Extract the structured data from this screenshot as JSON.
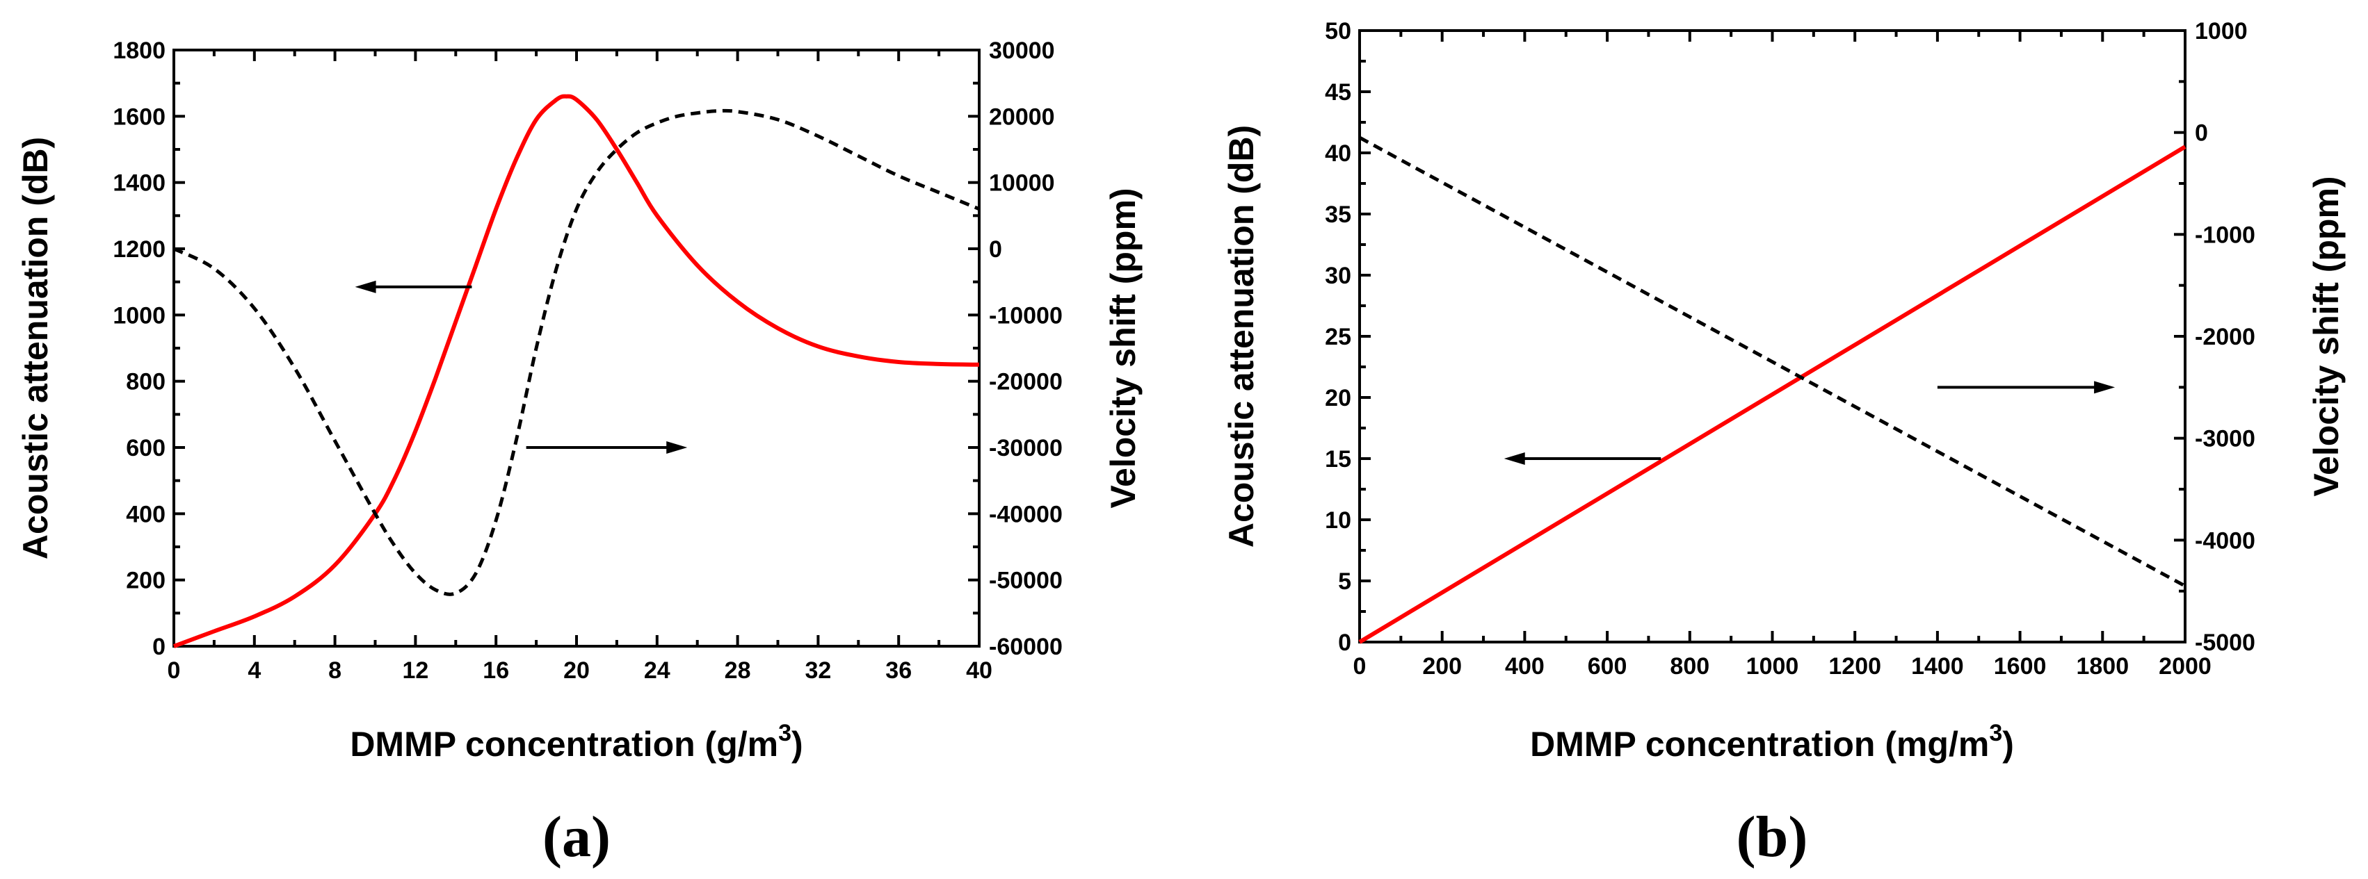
{
  "chart_data": [
    {
      "type": "line",
      "panel_label": "(a)",
      "xlabel": "DMMP concentration (g/m",
      "xlabel_sup": "3",
      "xlabel_end": ")",
      "ylabel_left": "Acoustic attenuation (dB)",
      "ylabel_right": "Velocity shift (ppm)",
      "xlim": [
        0,
        40
      ],
      "ylim_left": [
        0,
        1800
      ],
      "ylim_right": [
        -60000,
        30000
      ],
      "xticks": [
        "0",
        "4",
        "8",
        "12",
        "16",
        "20",
        "24",
        "28",
        "32",
        "36",
        "40"
      ],
      "yticks_left": [
        "0",
        "200",
        "400",
        "600",
        "800",
        "1000",
        "1200",
        "1400",
        "1600",
        "1800"
      ],
      "yticks_right": [
        "-60000",
        "-50000",
        "-40000",
        "-30000",
        "-20000",
        "-10000",
        "0",
        "10000",
        "20000",
        "30000"
      ],
      "series": [
        {
          "name": "Acoustic attenuation",
          "axis": "left",
          "color": "#ff0000",
          "style": "solid",
          "x": [
            0,
            2,
            4,
            6,
            8,
            10,
            11,
            12,
            13,
            14,
            15,
            16,
            17,
            18,
            19,
            19.5,
            20,
            21,
            22,
            23,
            24,
            26,
            28,
            30,
            32,
            34,
            36,
            38,
            40
          ],
          "y": [
            0,
            45,
            90,
            150,
            245,
            400,
            510,
            650,
            810,
            980,
            1150,
            1320,
            1470,
            1590,
            1650,
            1660,
            1650,
            1590,
            1500,
            1400,
            1300,
            1150,
            1040,
            960,
            905,
            875,
            858,
            852,
            850
          ]
        },
        {
          "name": "Velocity shift",
          "axis": "right",
          "color": "#000000",
          "style": "dashed",
          "x": [
            0,
            2,
            4,
            6,
            8,
            10,
            11,
            12,
            13,
            14,
            15,
            16,
            17,
            18,
            19,
            20,
            21,
            22,
            23,
            24,
            25,
            26,
            27,
            28,
            30,
            32,
            34,
            36,
            38,
            40
          ],
          "y": [
            0,
            -3000,
            -9000,
            -18000,
            -29000,
            -40000,
            -45000,
            -49000,
            -51500,
            -52000,
            -49000,
            -41000,
            -29000,
            -15000,
            -3000,
            6000,
            11500,
            15000,
            17500,
            19000,
            20000,
            20500,
            20800,
            20700,
            19500,
            17000,
            14000,
            11000,
            8500,
            6000
          ]
        }
      ],
      "arrows": [
        {
          "direction": "left",
          "x_from": 14.8,
          "x_to": 9,
          "y": 1085,
          "axis": "left"
        },
        {
          "direction": "right",
          "x_from": 17.5,
          "x_to": 25.5,
          "y": -30000,
          "axis": "right"
        }
      ]
    },
    {
      "type": "line",
      "panel_label": "(b)",
      "xlabel": "DMMP concentration (mg/m",
      "xlabel_sup": "3",
      "xlabel_end": ")",
      "ylabel_left": "Acoustic attenuation (dB)",
      "ylabel_right": "Velocity shift (ppm)",
      "xlim": [
        0,
        2000
      ],
      "ylim_left": [
        0,
        50
      ],
      "ylim_right": [
        -5000,
        1000
      ],
      "xticks": [
        "0",
        "200",
        "400",
        "600",
        "800",
        "1000",
        "1200",
        "1400",
        "1600",
        "1800",
        "2000"
      ],
      "yticks_left": [
        "0",
        "5",
        "10",
        "15",
        "20",
        "25",
        "30",
        "35",
        "40",
        "45",
        "50"
      ],
      "yticks_right": [
        "-5000",
        "-4000",
        "-3000",
        "-2000",
        "-1000",
        "0",
        "1000"
      ],
      "series": [
        {
          "name": "Acoustic attenuation",
          "axis": "left",
          "color": "#ff0000",
          "style": "solid",
          "x": [
            0,
            2000
          ],
          "y": [
            0,
            40.5
          ]
        },
        {
          "name": "Velocity shift",
          "axis": "right",
          "color": "#000000",
          "style": "dashed",
          "x": [
            0,
            2000
          ],
          "y": [
            -50,
            -4450
          ]
        }
      ],
      "arrows": [
        {
          "direction": "left",
          "x_from": 730,
          "x_to": 350,
          "y": 15,
          "axis": "left"
        },
        {
          "direction": "right",
          "x_from": 1400,
          "x_to": 1830,
          "y": -2500,
          "axis": "right"
        }
      ]
    }
  ]
}
